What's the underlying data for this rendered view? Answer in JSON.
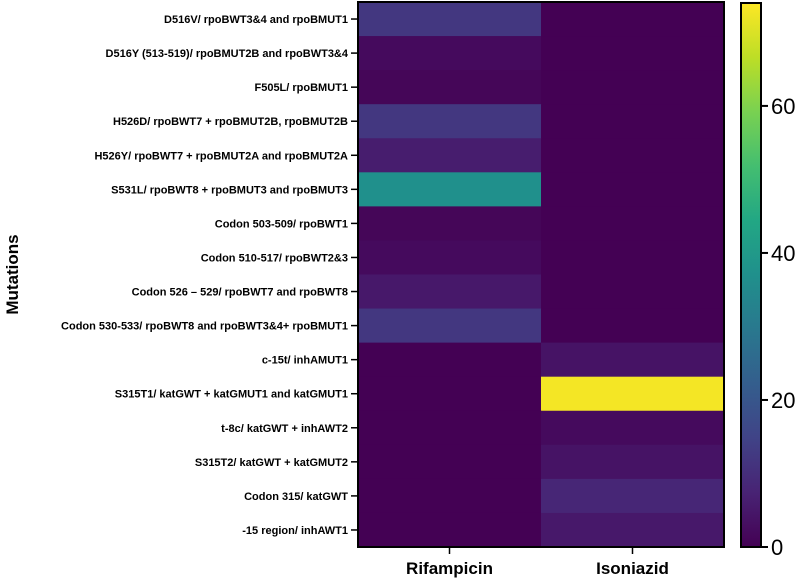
{
  "chart_data": {
    "type": "heatmap",
    "ylabel": "Mutations",
    "xlabel": "",
    "columns": [
      "Rifampicin",
      "Isoniazid"
    ],
    "rows": [
      "D516V/ rpoBWT3&4 and rpoBMUT1",
      "D516Y (513-519)/ rpoBMUT2B and rpoBWT3&4",
      "F505L/ rpoBMUT1",
      "H526D/ rpoBWT7 + rpoBMUT2B, rpoBMUT2B",
      "H526Y/ rpoBWT7 + rpoBMUT2A and rpoBMUT2A",
      "S531L/ rpoBWT8 + rpoBMUT3 and rpoBMUT3",
      "Codon 503-509/ rpoBWT1",
      "Codon 510-517/ rpoBWT2&3",
      "Codon 526 – 529/ rpoBWT7 and rpoBWT8",
      "Codon 530-533/ rpoBWT8 and rpoBWT3&4+ rpoBMUT1",
      "c-15t/ inhAMUT1",
      "S315T1/ katGWT + katGMUT1 and katGMUT1",
      "t-8c/ katGWT + inhAWT2",
      "S315T2/ katGWT + katGMUT2",
      "Codon 315/ katGWT",
      "-15 region/ inhAWT1"
    ],
    "values": [
      [
        12,
        0
      ],
      [
        2,
        0
      ],
      [
        1,
        0
      ],
      [
        12,
        0
      ],
      [
        6,
        0
      ],
      [
        37,
        0
      ],
      [
        1,
        0
      ],
      [
        2,
        0
      ],
      [
        5,
        0
      ],
      [
        12,
        0
      ],
      [
        0,
        4
      ],
      [
        0,
        73
      ],
      [
        0,
        2
      ],
      [
        0,
        4
      ],
      [
        0,
        8
      ],
      [
        0,
        5
      ]
    ],
    "colorbar": {
      "min": 0,
      "max": 74,
      "ticks": [
        0,
        20,
        40,
        60
      ],
      "tick_labels": [
        "0",
        "20",
        "40",
        "60"
      ],
      "colormap": "viridis"
    },
    "grid": false
  }
}
